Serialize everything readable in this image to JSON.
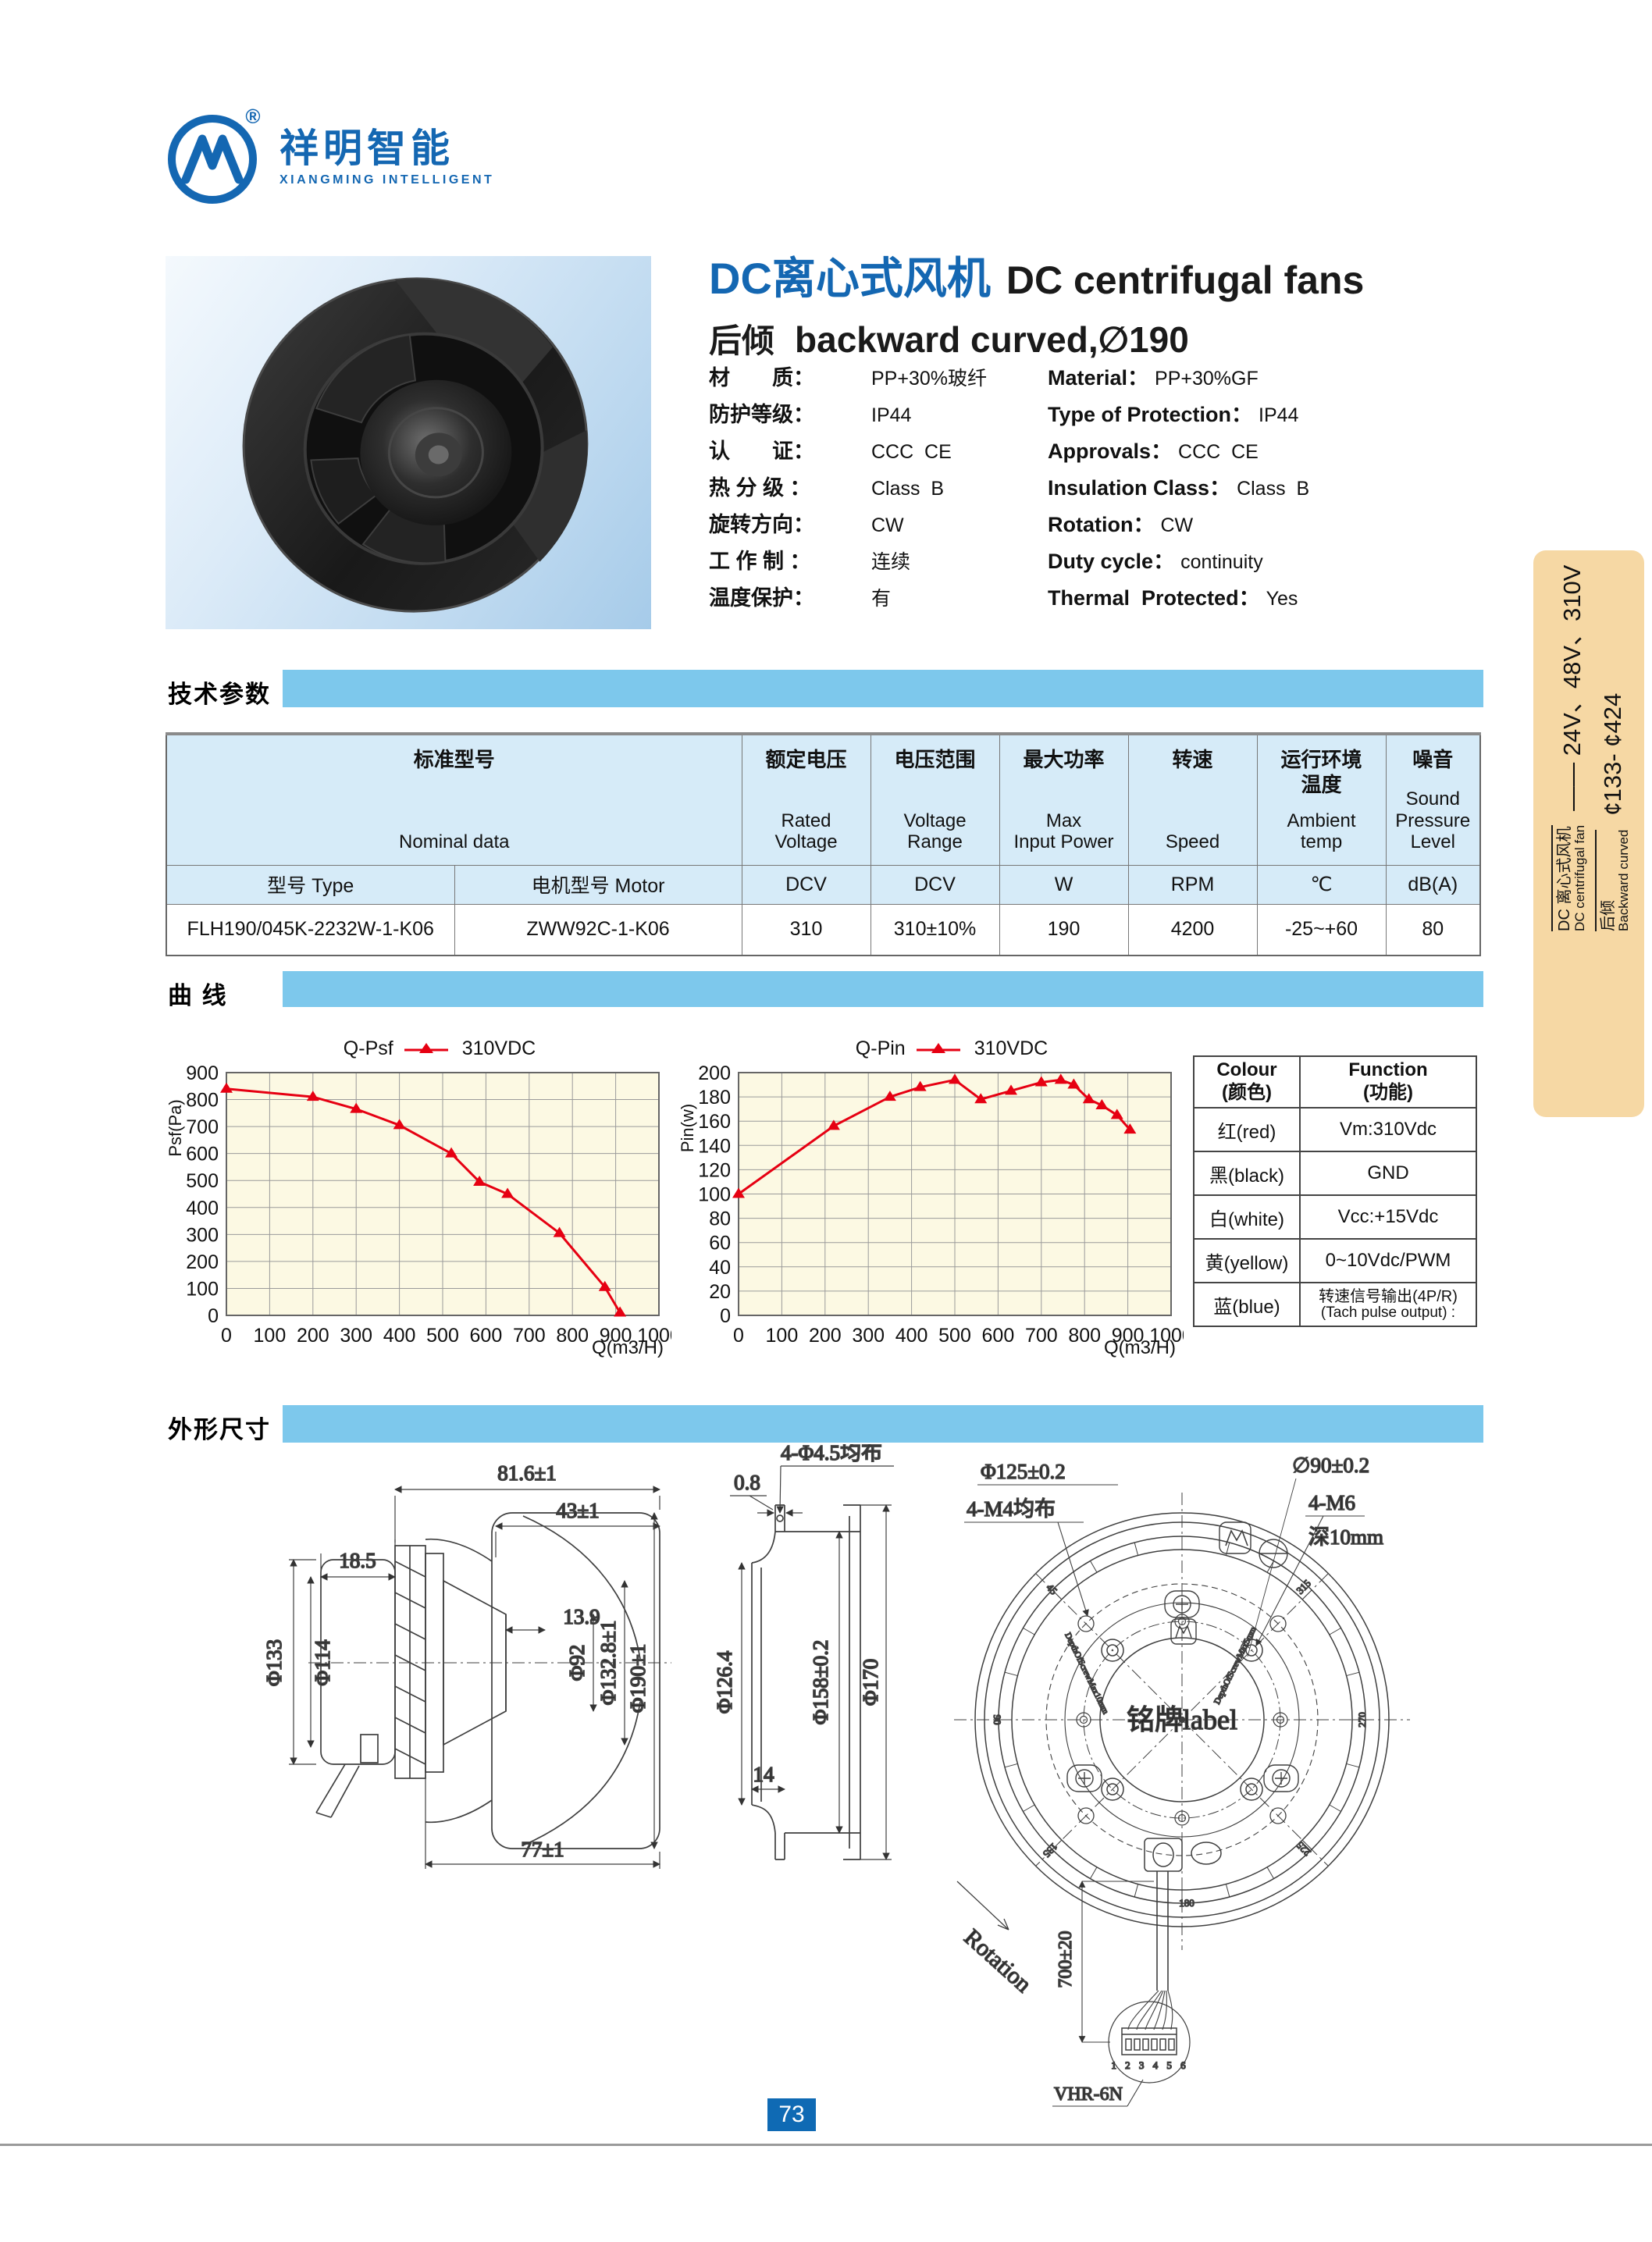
{
  "brand": {
    "logo_cn": "祥明智能",
    "logo_en": "XIANGMING INTELLIGENT",
    "reg": "®"
  },
  "header": {
    "title_cn": "DC离心式风机",
    "title_en": "DC centrifugal fans",
    "subtitle_cn": "后倾",
    "subtitle_en": "backward curved,∅190"
  },
  "specs": [
    {
      "cn_l": "材　　质：",
      "cn_v": "PP+30%玻纤",
      "en_l": "Material：",
      "en_v": "PP+30%GF"
    },
    {
      "cn_l": "防护等级：",
      "cn_v": "IP44",
      "en_l": "Type of Protection：",
      "en_v": "IP44"
    },
    {
      "cn_l": "认　　证：",
      "cn_v": "CCC  CE",
      "en_l": "Approvals：",
      "en_v": "CCC  CE"
    },
    {
      "cn_l": "热 分 级 ：",
      "cn_v": "Class  B",
      "en_l": "Insulation Class：",
      "en_v": "Class  B"
    },
    {
      "cn_l": "旋转方向：",
      "cn_v": "CW",
      "en_l": "Rotation：",
      "en_v": "CW"
    },
    {
      "cn_l": "工 作 制 ：",
      "cn_v": "连续",
      "en_l": "Duty cycle：",
      "en_v": "continuity"
    },
    {
      "cn_l": "温度保护：",
      "cn_v": "有",
      "en_l": "Thermal  Protected：",
      "en_v": "Yes"
    }
  ],
  "section_titles": {
    "tech": "技术参数",
    "curves": "曲  线",
    "dims": "外形尺寸"
  },
  "tech_table": {
    "group_cn": "标准型号",
    "group_en": "Nominal  data",
    "cols": [
      {
        "cn": "额定电压",
        "en": "Rated\nVoltage"
      },
      {
        "cn": "电压范围",
        "en": "Voltage\nRange"
      },
      {
        "cn": "最大功率",
        "en": "Max\nInput Power"
      },
      {
        "cn": "转速",
        "en": "Speed"
      },
      {
        "cn": "运行环境\n温度",
        "en": "Ambient\ntemp"
      },
      {
        "cn": "噪音",
        "en": "Sound\nPressure\nLevel"
      }
    ],
    "sub": [
      "型号  Type",
      "电机型号  Motor",
      "DCV",
      "DCV",
      "W",
      "RPM",
      "℃",
      "dB(A)"
    ],
    "row": [
      "FLH190/045K-2232W-1-K06",
      "ZWW92C-1-K06",
      "310",
      "310±10%",
      "190",
      "4200",
      "-25~+60",
      "80"
    ]
  },
  "chart_data": [
    {
      "type": "line",
      "title": "Q-Psf",
      "xlabel": "Q(m3/H)",
      "ylabel": "Psf(Pa)",
      "xlim": [
        0,
        1000
      ],
      "ylim": [
        0,
        900
      ],
      "xstep": 100,
      "ystep": 100,
      "grid": true,
      "legend_position": "top",
      "series": [
        {
          "name": "310VDC",
          "color": "#e60012",
          "points": [
            [
              0,
              840
            ],
            [
              200,
              810
            ],
            [
              300,
              765
            ],
            [
              400,
              705
            ],
            [
              520,
              600
            ],
            [
              585,
              495
            ],
            [
              650,
              450
            ],
            [
              770,
              305
            ],
            [
              875,
              105
            ],
            [
              910,
              10
            ]
          ]
        }
      ]
    },
    {
      "type": "line",
      "title": "Q-Pin",
      "xlabel": "Q(m3/H)",
      "ylabel": "Pin(w)",
      "xlim": [
        0,
        1000
      ],
      "ylim": [
        0,
        200
      ],
      "xstep": 100,
      "ystep": 20,
      "grid": true,
      "legend_position": "top",
      "series": [
        {
          "name": "310VDC",
          "color": "#e60012",
          "points": [
            [
              0,
              100
            ],
            [
              220,
              156
            ],
            [
              350,
              180
            ],
            [
              420,
              188
            ],
            [
              500,
              194
            ],
            [
              560,
              178
            ],
            [
              630,
              185
            ],
            [
              700,
              192
            ],
            [
              745,
              194
            ],
            [
              775,
              190
            ],
            [
              810,
              178
            ],
            [
              840,
              173
            ],
            [
              875,
              165
            ],
            [
              905,
              153
            ]
          ]
        }
      ]
    }
  ],
  "wiring_table": {
    "col1_l1": "Colour",
    "col1_l2": "(颜色)",
    "col2_l1": "Function",
    "col2_l2": "(功能)",
    "rows": [
      {
        "colour": "红(red)",
        "function": "Vm:310Vdc"
      },
      {
        "colour": "黑(black)",
        "function": "GND"
      },
      {
        "colour": "白(white)",
        "function": "Vcc:+15Vdc"
      },
      {
        "colour": "黄(yellow)",
        "function": "0~10Vdc/PWM"
      },
      {
        "colour": "蓝(blue)",
        "function": "转速信号输出(4P/R)",
        "function2": "(Tach pulse output) :"
      }
    ]
  },
  "sidebar": {
    "row1_cn": "DC 离心式风机",
    "row1_en": "DC centrifugal fan",
    "row1_big": "—— 24V、48V、310V",
    "row2_cn": "后倾",
    "row2_en": "Backward curved",
    "row2_big": "¢133- ¢424"
  },
  "drawings": {
    "side_view": {
      "dim_816": "81.6±1",
      "dim_43": "43±1",
      "dim_185": "18.5",
      "dim_139": "13.9",
      "phi133": "Φ133",
      "phi114": "Φ114",
      "phi92": "Φ92",
      "phi1328": "Φ132.8±1",
      "phi190": "Φ190±1",
      "dim_77": "77±1"
    },
    "inlet_ring": {
      "holes": "4-Φ4.5均布",
      "dim_08": "0.8",
      "phi1264": "Φ126.4",
      "phi158": "Φ158±0.2",
      "phi170": "Φ170",
      "dim_14": "14"
    },
    "rear_view": {
      "phi125": "Φ125±0.2",
      "m4": "4-M4均布",
      "phi90": "∅90±0.2",
      "m6": "4-M6",
      "depth": "深10mm",
      "label_center": "铭牌label",
      "rotation": "Rotation",
      "cable": "700±20",
      "connector": "VHR-6N",
      "pins": "1 2 3 4 5 6",
      "note_left": "DepthOfScrewMax10mm",
      "note_right": "DepthOfScrewMax5mm",
      "angles": [
        "45",
        "90",
        "135",
        "180",
        "225",
        "270",
        "315"
      ]
    }
  },
  "footer": {
    "page": "73"
  },
  "colors": {
    "brand_blue": "#1467b2",
    "bar_blue": "#7dc8ec",
    "table_head_bg": "#d6ebf8",
    "chart_bg": "#fcf9e3",
    "curve_red": "#e60012",
    "sidebar_tan": "#f6d8a4",
    "badge_blue": "#0f6ab4"
  }
}
